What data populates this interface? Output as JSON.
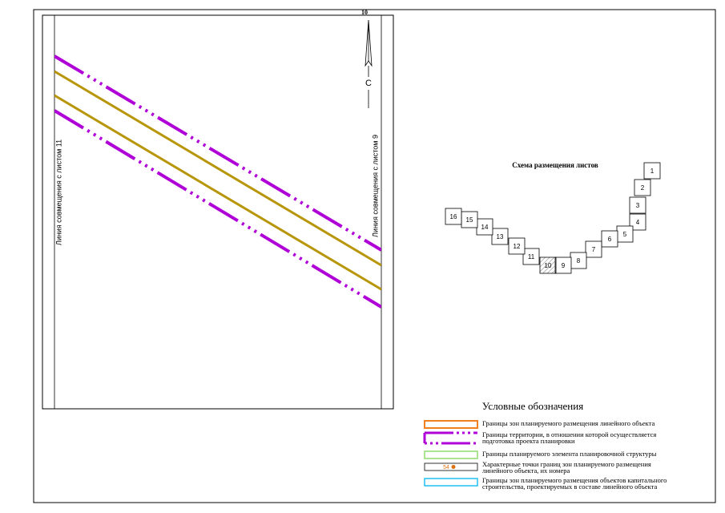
{
  "sheet_number": "10",
  "north_label": "С",
  "match_lines": {
    "left": "Линия совмещения с листом 11",
    "right": "Линия совмещения с листом 9"
  },
  "scheme": {
    "title": "Схема размещения листов",
    "sheets": [
      "1",
      "2",
      "3",
      "4",
      "5",
      "6",
      "7",
      "8",
      "9",
      "10",
      "11",
      "12",
      "13",
      "14",
      "15",
      "16"
    ]
  },
  "legend": {
    "title": "Условные обозначения",
    "point_number": "54",
    "items": [
      {
        "lines": [
          "Границы зон планируемого размещения линейного объекта"
        ]
      },
      {
        "lines": [
          "Границы территории, в отношении которой осуществляется",
          "подготовка проекта планировки"
        ]
      },
      {
        "lines": [
          "Границы планируемого элемента планировочной структуры"
        ]
      },
      {
        "lines": [
          "Характерные точки границ зон планируемого размещения",
          "линейного объекта, их номера"
        ]
      },
      {
        "lines": [
          "Границы зон планируемого размещения объектов капитального",
          "строительства, проектируемых в составе линейного объекта"
        ]
      }
    ]
  }
}
